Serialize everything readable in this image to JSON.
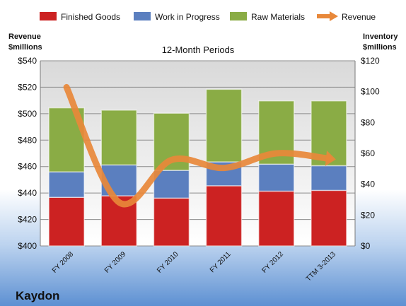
{
  "company": "Kaydon",
  "chart_data": {
    "type": "bar",
    "stacked": true,
    "title": "12-Month Periods",
    "categories": [
      "FY 2008",
      "FY 2009",
      "FY 2010",
      "FY 2011",
      "FY 2012",
      "TTM 3-2013"
    ],
    "series": [
      {
        "name": "Finished Goods",
        "axis": "right",
        "color": "#cc2222",
        "values": [
          31.5,
          32.5,
          31.0,
          39.0,
          35.5,
          36.0
        ]
      },
      {
        "name": "Work in Progress",
        "axis": "right",
        "color": "#5b7fbf",
        "values": [
          16.5,
          20.0,
          18.0,
          15.5,
          17.5,
          16.0
        ]
      },
      {
        "name": "Raw Materials",
        "axis": "right",
        "color": "#8aac45",
        "values": [
          41.5,
          35.5,
          37.0,
          47.0,
          41.0,
          42.0
        ]
      },
      {
        "name": "Revenue",
        "type": "line",
        "axis": "left",
        "color": "#e8883a",
        "values": [
          520,
          433,
          465,
          459,
          470,
          466
        ]
      }
    ],
    "left_axis": {
      "label_line1": "Revenue",
      "label_line2": "$millions",
      "ylim": [
        400,
        540
      ],
      "ticks": [
        "$400",
        "$420",
        "$440",
        "$460",
        "$480",
        "$500",
        "$520",
        "$540"
      ]
    },
    "right_axis": {
      "label_line1": "Inventory",
      "label_line2": "$millions",
      "ylim": [
        0,
        120
      ],
      "ticks": [
        "$0",
        "$20",
        "$40",
        "$60",
        "$80",
        "$100",
        "$120"
      ]
    },
    "grid": true,
    "legend_position": "top"
  }
}
